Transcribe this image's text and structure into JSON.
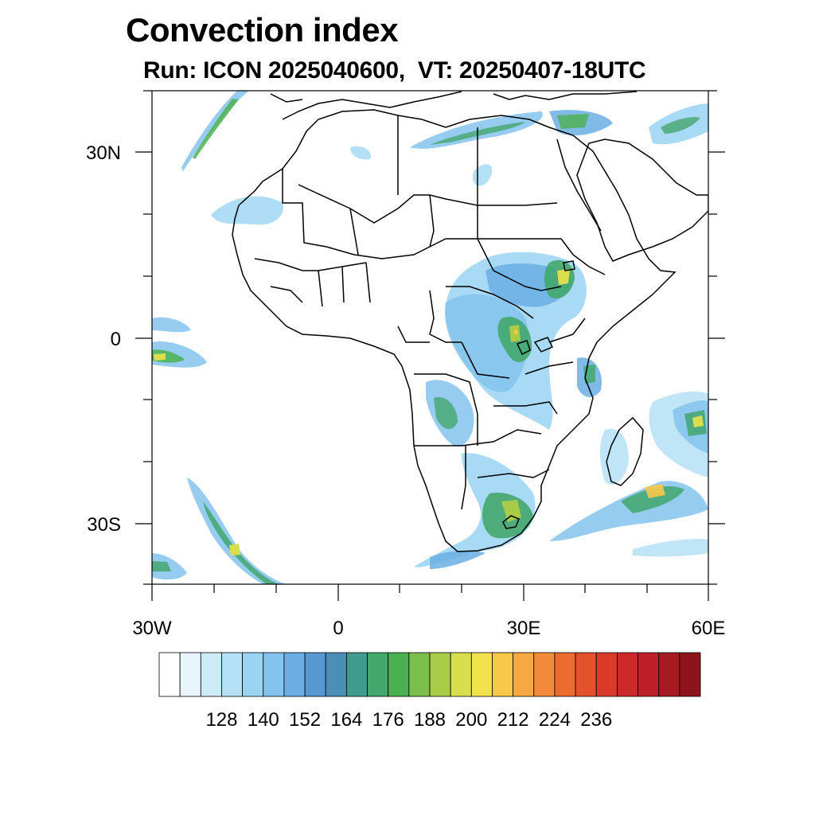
{
  "title": "Convection index",
  "subtitle": "Run: ICON 2025040600,  VT: 20250407-18UTC",
  "axes": {
    "lat_labels": [
      "30N",
      "0",
      "30S"
    ],
    "lon_labels": [
      "30W",
      "0",
      "30E",
      "60E"
    ]
  },
  "colorbar": {
    "labels": [
      "128",
      "140",
      "152",
      "164",
      "176",
      "188",
      "200",
      "212",
      "224",
      "236"
    ],
    "colors": [
      "#ffffff",
      "#e8f5fc",
      "#cdebf8",
      "#b4e0f6",
      "#9ad4f3",
      "#84c3ec",
      "#6aaee3",
      "#5598d2",
      "#4a8fb8",
      "#3f9a8f",
      "#43a66d",
      "#4bb04f",
      "#7cbe4c",
      "#a8cc48",
      "#d9de4e",
      "#f2e24e",
      "#f8c84a",
      "#f6a843",
      "#f38a3a",
      "#ec6b31",
      "#e3522b",
      "#da3a29",
      "#cc2a2a",
      "#bd2027",
      "#a81a22",
      "#8e141c"
    ]
  }
}
